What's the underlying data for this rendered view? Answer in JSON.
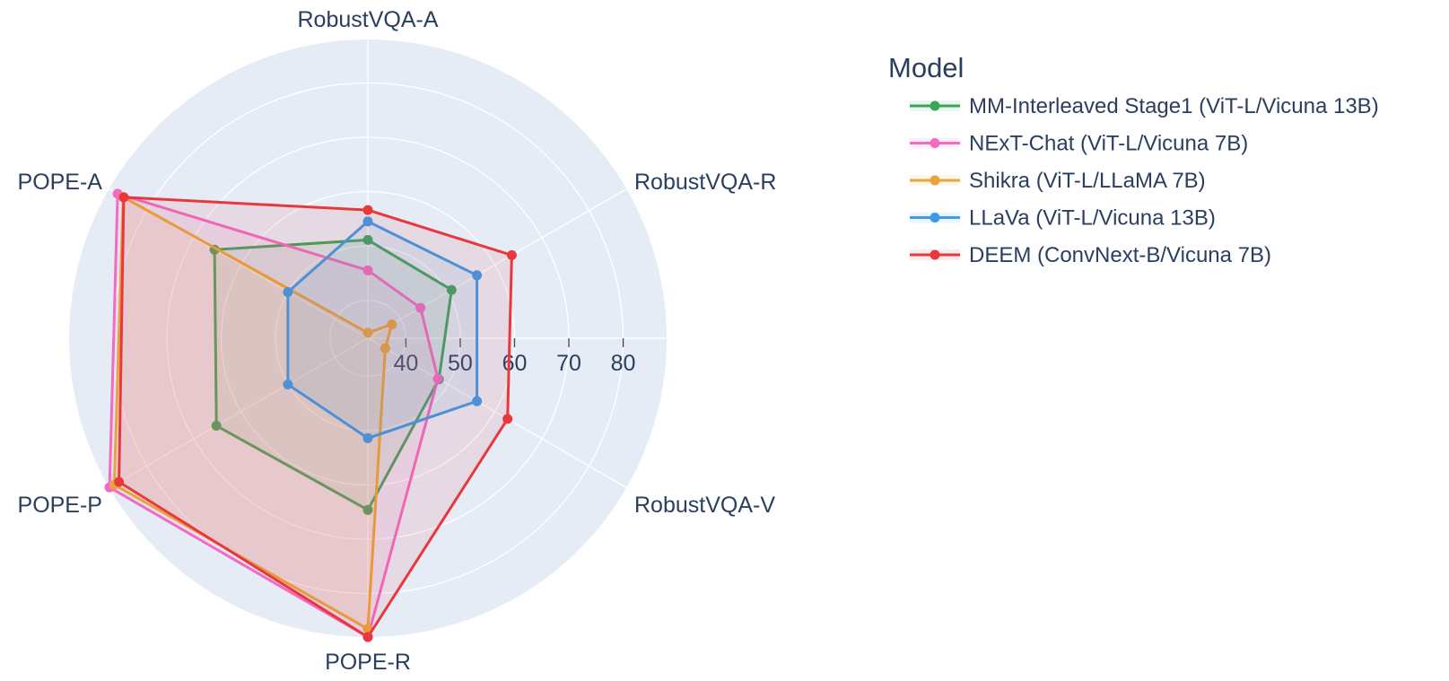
{
  "chart_data": {
    "type": "radar",
    "axes": [
      "RobustVQA-A",
      "RobustVQA-R",
      "RobustVQA-V",
      "POPE-R",
      "POPE-P",
      "POPE-A"
    ],
    "radial_range": [
      33,
      88
    ],
    "radial_ticks": [
      40,
      50,
      60,
      70,
      80
    ],
    "grid": true,
    "legend": {
      "title": "Model",
      "placement": "top-right"
    },
    "colors": {
      "polar_background": "#e5ecf6",
      "grid": "#ffffff",
      "text": "#2a3f5f"
    },
    "series": [
      {
        "name": "MM-Interleaved Stage1 (ViT-L/Vicuna 13B)",
        "color": "#3ba55c",
        "values": [
          51.1,
          50.8,
          48.1,
          64.6,
          65.2,
          65.6
        ]
      },
      {
        "name": "NExT-Chat (ViT-L/Vicuna 7B)",
        "color": "#f26bc2",
        "values": [
          45.5,
          44.2,
          47.9,
          88.0,
          87.9,
          86.2
        ]
      },
      {
        "name": "Shikra (ViT-L/LLaMA 7B)",
        "color": "#e8a43c",
        "values": [
          34.0,
          38.1,
          36.7,
          86.5,
          86.9,
          85.0
        ]
      },
      {
        "name": "LLaVa (ViT-L/Vicuna 13B)",
        "color": "#3c9ae8",
        "values": [
          54.5,
          56.2,
          56.2,
          51.4,
          50.0,
          50.0
        ]
      },
      {
        "name": "DEEM (ConvNext-B/Vicuna 7B)",
        "color": "#e8383d",
        "values": [
          56.6,
          63.6,
          62.7,
          88.0,
          85.9,
          84.9
        ]
      }
    ]
  }
}
